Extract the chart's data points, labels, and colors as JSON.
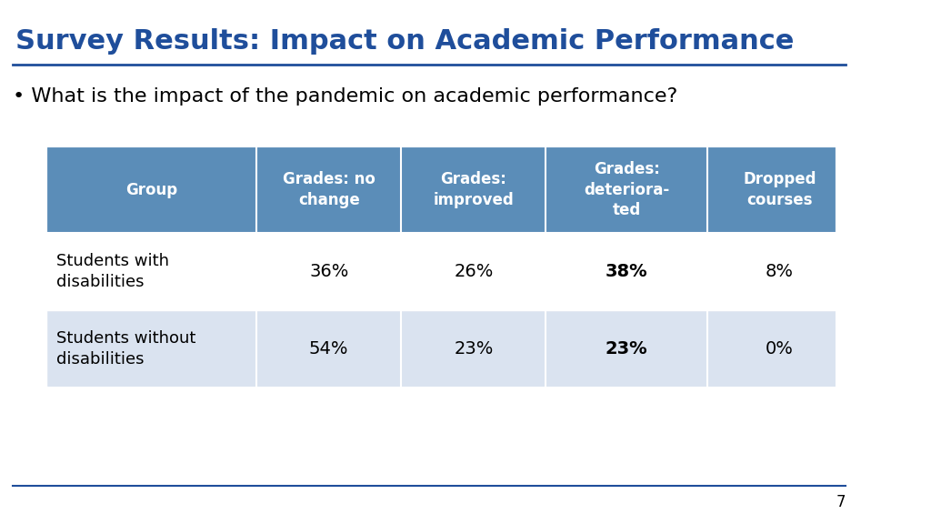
{
  "title": "Survey Results: Impact on Academic Performance",
  "title_color": "#1F4E9B",
  "bullet_text": "What is the impact of the pandemic on academic performance?",
  "background_color": "#FFFFFF",
  "header_bg_color": "#5B8DB8",
  "header_text_color": "#FFFFFF",
  "row1_bg_color": "#FFFFFF",
  "row2_bg_color": "#DAE3F0",
  "col_headers": [
    "Group",
    "Grades: no\nchange",
    "Grades:\nimproved",
    "Grades:\ndeteriora­ted",
    "Dropped\ncourses"
  ],
  "col_headers_display": [
    "Group",
    "Grades: no\nchange",
    "Grades:\nimproved",
    "Grades:\ndeteriora-\nted",
    "Dropped\ncourses"
  ],
  "rows": [
    {
      "group": "Students with\ndisabilities",
      "values": [
        "36%",
        "26%",
        "38%",
        "8%"
      ],
      "bold_col": 2
    },
    {
      "group": "Students without\ndisabilities",
      "values": [
        "54%",
        "23%",
        "23%",
        "0%"
      ],
      "bold_col": 2
    }
  ],
  "footer_line_color": "#1F4E9B",
  "page_number": "7",
  "line_color": "#1F4E9B"
}
